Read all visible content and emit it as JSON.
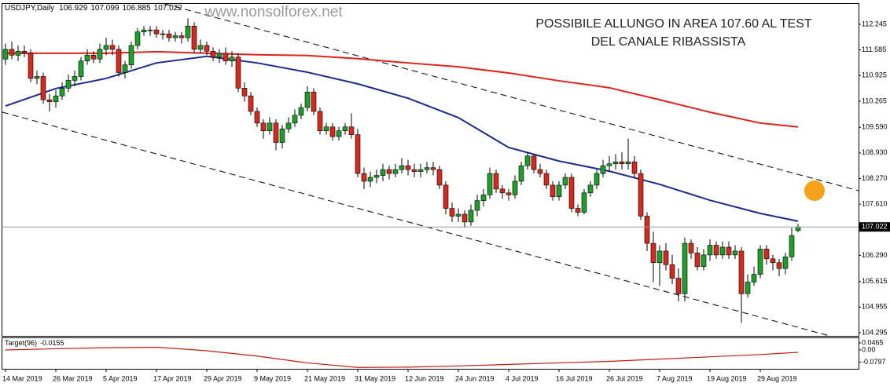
{
  "chart_data": [
    {
      "type": "candlestick",
      "title": "USDJPY,Daily",
      "watermark": "www.nonsolforex.net",
      "annotation": [
        "POSSIBILE ALLUNGO IN AREA 107.60 AL TEST",
        "DEL CANALE RIBASSISTA"
      ],
      "up_color": "#1f9e2c",
      "down_color": "#d42a1f",
      "categories": [
        "14 Mar 2019",
        null,
        null,
        null,
        null,
        null,
        null,
        null,
        "26 Mar 2019",
        null,
        null,
        null,
        null,
        null,
        null,
        null,
        "5 Apr 2019",
        null,
        null,
        null,
        null,
        null,
        null,
        null,
        "17 Apr 2019",
        null,
        null,
        null,
        null,
        null,
        null,
        null,
        "29 Apr 2019",
        null,
        null,
        null,
        null,
        null,
        null,
        null,
        "9 May 2019",
        null,
        null,
        null,
        null,
        null,
        null,
        null,
        "21 May 2019",
        null,
        null,
        null,
        null,
        null,
        null,
        null,
        "31 May 2019",
        null,
        null,
        null,
        null,
        null,
        null,
        null,
        "12 Jun 2019",
        null,
        null,
        null,
        null,
        null,
        null,
        null,
        "24 Jun 2019",
        null,
        null,
        null,
        null,
        null,
        null,
        null,
        "4 Jul 2019",
        null,
        null,
        null,
        null,
        null,
        null,
        null,
        "16 Jul 2019",
        null,
        null,
        null,
        null,
        null,
        null,
        null,
        "26 Jul 2019",
        null,
        null,
        null,
        null,
        null,
        null,
        null,
        "7 Aug 2019",
        null,
        null,
        null,
        null,
        null,
        null,
        null,
        "19 Aug 2019",
        null,
        null,
        null,
        null,
        null,
        null,
        null,
        "29 Aug 2019",
        null,
        null,
        null,
        null,
        null,
        null
      ],
      "open": [
        111.35,
        111.6,
        111.45,
        111.55,
        111.5,
        110.85,
        110.9,
        110.3,
        110.25,
        110.4,
        110.6,
        110.8,
        110.9,
        111.3,
        111.45,
        111.35,
        111.6,
        111.7,
        111.6,
        111.0,
        111.2,
        111.7,
        112.05,
        112.1,
        112.1,
        112.0,
        112.0,
        111.9,
        111.95,
        111.9,
        112.2,
        111.6,
        111.7,
        111.55,
        111.4,
        111.5,
        111.3,
        111.4,
        110.6,
        110.4,
        110.0,
        109.7,
        109.5,
        109.7,
        109.2,
        109.55,
        109.7,
        109.9,
        110.1,
        110.5,
        110.0,
        109.5,
        109.6,
        109.35,
        109.5,
        109.6,
        109.4,
        108.4,
        108.2,
        108.3,
        108.35,
        108.5,
        108.4,
        108.5,
        108.6,
        108.5,
        108.45,
        108.5,
        108.55,
        108.5,
        108.1,
        107.5,
        107.3,
        107.35,
        107.15,
        107.45,
        107.7,
        107.85,
        108.4,
        108.0,
        107.9,
        107.85,
        108.2,
        108.6,
        108.85,
        108.5,
        108.4,
        108.1,
        107.8,
        108.1,
        108.3,
        107.5,
        107.4,
        107.9,
        108.1,
        108.4,
        108.6,
        108.65,
        108.7,
        108.65,
        108.7,
        108.4,
        107.3,
        106.6,
        106.1,
        106.4,
        106.05,
        105.7,
        105.3,
        106.6,
        106.35,
        106.0,
        106.3,
        106.55,
        106.3,
        106.5,
        106.3,
        106.4,
        105.3,
        105.6,
        105.8,
        106.45,
        106.2,
        106.1,
        105.95,
        106.25,
        106.929
      ],
      "high": [
        111.75,
        111.8,
        111.7,
        111.7,
        111.6,
        111.05,
        111.0,
        110.45,
        110.55,
        110.75,
        110.95,
        111.05,
        111.4,
        111.6,
        111.55,
        111.75,
        111.9,
        111.85,
        111.7,
        111.3,
        111.8,
        112.15,
        112.2,
        112.2,
        112.2,
        112.1,
        112.1,
        112.05,
        112.05,
        112.4,
        112.3,
        111.85,
        111.8,
        111.65,
        111.6,
        111.65,
        111.55,
        111.5,
        110.75,
        110.5,
        110.1,
        109.8,
        109.85,
        109.8,
        109.65,
        109.85,
        110.05,
        110.2,
        110.65,
        110.6,
        110.1,
        109.7,
        109.7,
        109.6,
        109.7,
        109.95,
        109.55,
        108.55,
        108.45,
        108.5,
        108.65,
        108.6,
        108.65,
        108.8,
        108.75,
        108.65,
        108.65,
        108.7,
        108.7,
        108.6,
        108.2,
        107.65,
        107.5,
        107.45,
        107.6,
        107.85,
        108.0,
        108.55,
        108.5,
        108.1,
        108.0,
        108.35,
        108.7,
        108.95,
        108.9,
        108.65,
        108.5,
        108.2,
        108.2,
        108.4,
        108.4,
        107.6,
        108.0,
        108.2,
        108.5,
        108.75,
        108.85,
        108.9,
        108.95,
        109.3,
        108.85,
        108.5,
        107.4,
        106.9,
        106.55,
        106.6,
        106.3,
        105.95,
        106.75,
        106.7,
        106.5,
        106.45,
        106.7,
        106.65,
        106.65,
        106.65,
        106.55,
        106.5,
        105.8,
        106.0,
        106.55,
        106.55,
        106.3,
        106.2,
        106.35,
        107.0,
        107.099
      ],
      "low": [
        111.2,
        111.35,
        111.3,
        111.4,
        110.75,
        110.7,
        110.2,
        110.0,
        110.1,
        110.3,
        110.5,
        110.65,
        110.8,
        111.2,
        111.25,
        111.25,
        111.45,
        111.45,
        110.9,
        110.85,
        111.1,
        111.6,
        111.95,
        111.95,
        111.9,
        111.85,
        111.8,
        111.8,
        111.75,
        111.8,
        111.5,
        111.5,
        111.45,
        111.3,
        111.25,
        111.2,
        111.15,
        110.5,
        110.25,
        109.9,
        109.6,
        109.3,
        109.4,
        109.0,
        109.05,
        109.45,
        109.6,
        109.8,
        110.0,
        109.9,
        109.4,
        109.4,
        109.25,
        109.25,
        109.4,
        109.3,
        108.3,
        108.0,
        108.05,
        108.15,
        108.2,
        108.25,
        108.3,
        108.4,
        108.35,
        108.3,
        108.3,
        108.4,
        108.35,
        108.0,
        107.35,
        107.15,
        107.15,
        107.0,
        107.05,
        107.3,
        107.55,
        107.75,
        107.9,
        107.75,
        107.7,
        107.75,
        108.1,
        108.5,
        108.4,
        108.3,
        108.0,
        107.7,
        107.7,
        108.0,
        107.4,
        107.3,
        107.35,
        107.8,
        108.0,
        108.3,
        108.45,
        108.5,
        108.5,
        108.5,
        108.3,
        107.2,
        106.4,
        105.6,
        105.5,
        105.9,
        105.55,
        105.1,
        105.1,
        106.2,
        105.9,
        105.9,
        106.15,
        106.2,
        106.2,
        106.2,
        106.2,
        104.55,
        105.2,
        105.5,
        105.7,
        106.05,
        105.9,
        105.75,
        105.8,
        106.15,
        106.885
      ],
      "close": [
        111.6,
        111.45,
        111.55,
        111.5,
        110.85,
        110.9,
        110.3,
        110.25,
        110.4,
        110.6,
        110.8,
        110.9,
        111.3,
        111.45,
        111.35,
        111.6,
        111.7,
        111.6,
        111.0,
        111.2,
        111.7,
        112.05,
        112.1,
        112.1,
        112.0,
        112.0,
        111.9,
        111.95,
        111.9,
        112.2,
        111.6,
        111.7,
        111.55,
        111.4,
        111.5,
        111.3,
        111.4,
        110.6,
        110.4,
        110.0,
        109.7,
        109.5,
        109.7,
        109.2,
        109.55,
        109.7,
        109.9,
        110.1,
        110.5,
        110.0,
        109.5,
        109.6,
        109.35,
        109.5,
        109.6,
        109.4,
        108.4,
        108.2,
        108.3,
        108.35,
        108.5,
        108.4,
        108.5,
        108.6,
        108.5,
        108.45,
        108.5,
        108.55,
        108.5,
        108.1,
        107.5,
        107.3,
        107.35,
        107.15,
        107.45,
        107.7,
        107.85,
        108.4,
        108.0,
        107.9,
        107.85,
        108.2,
        108.6,
        108.85,
        108.5,
        108.4,
        108.1,
        107.8,
        108.1,
        108.3,
        107.5,
        107.4,
        107.9,
        108.1,
        108.4,
        108.6,
        108.65,
        108.7,
        108.65,
        108.7,
        108.4,
        107.3,
        106.6,
        106.1,
        106.4,
        106.05,
        105.7,
        105.3,
        106.6,
        106.35,
        106.0,
        106.3,
        106.55,
        106.3,
        106.5,
        106.3,
        106.4,
        105.3,
        105.6,
        105.8,
        106.45,
        106.2,
        106.1,
        105.95,
        106.25,
        106.8,
        107.022
      ],
      "lines": [
        {
          "color": "#1c2a8c",
          "x": [
            0,
            8,
            16,
            24,
            32,
            40,
            48,
            56,
            64,
            72,
            80,
            88,
            96,
            104,
            112,
            120,
            126
          ],
          "values": [
            110.14,
            110.59,
            110.85,
            111.25,
            111.42,
            111.25,
            111.01,
            110.71,
            110.34,
            109.84,
            109.07,
            108.72,
            108.46,
            108.12,
            107.71,
            107.37,
            107.17
          ]
        },
        {
          "color": "#e0201b",
          "x": [
            0,
            8,
            16,
            24,
            32,
            40,
            48,
            56,
            64,
            72,
            80,
            88,
            96,
            104,
            112,
            120,
            126
          ],
          "values": [
            111.5,
            111.5,
            111.5,
            111.54,
            111.5,
            111.46,
            111.44,
            111.36,
            111.25,
            111.15,
            110.99,
            110.79,
            110.61,
            110.3,
            109.98,
            109.7,
            109.6
          ]
        }
      ],
      "ylim": [
        104.214,
        112.771
      ],
      "yticks": [
        112.245,
        111.585,
        110.925,
        110.265,
        {
          "value": 109.59,
          "label": "109.590"
        },
        {
          "value": 108.93,
          "label": "108.930"
        },
        {
          "value": 108.27,
          "label": "108.270"
        },
        {
          "value": 107.61,
          "label": "107.610"
        },
        {
          "value": 106.29,
          "label": "106.290"
        },
        105.615,
        104.955,
        104.295
      ]
    },
    {
      "type": "line",
      "title": "Target(96)",
      "series": [
        {
          "name": "Target(96)",
          "color": "#c41a14",
          "x": [
            0,
            8,
            16,
            24,
            32,
            40,
            48,
            56,
            64,
            72,
            80,
            88,
            96,
            104,
            112,
            120,
            126
          ],
          "values": [
            0.0,
            0.008,
            0.015,
            0.018,
            -0.005,
            -0.04,
            -0.085,
            -0.115,
            -0.113,
            -0.105,
            -0.095,
            -0.085,
            -0.075,
            -0.06,
            -0.045,
            -0.03,
            -0.0155
          ]
        }
      ],
      "ylim": [
        -0.124,
        0.0775
      ],
      "yticks": [
        0.0465,
        {
          "value": 0,
          "label": "0.00"
        },
        -0.0797
      ]
    }
  ]
}
